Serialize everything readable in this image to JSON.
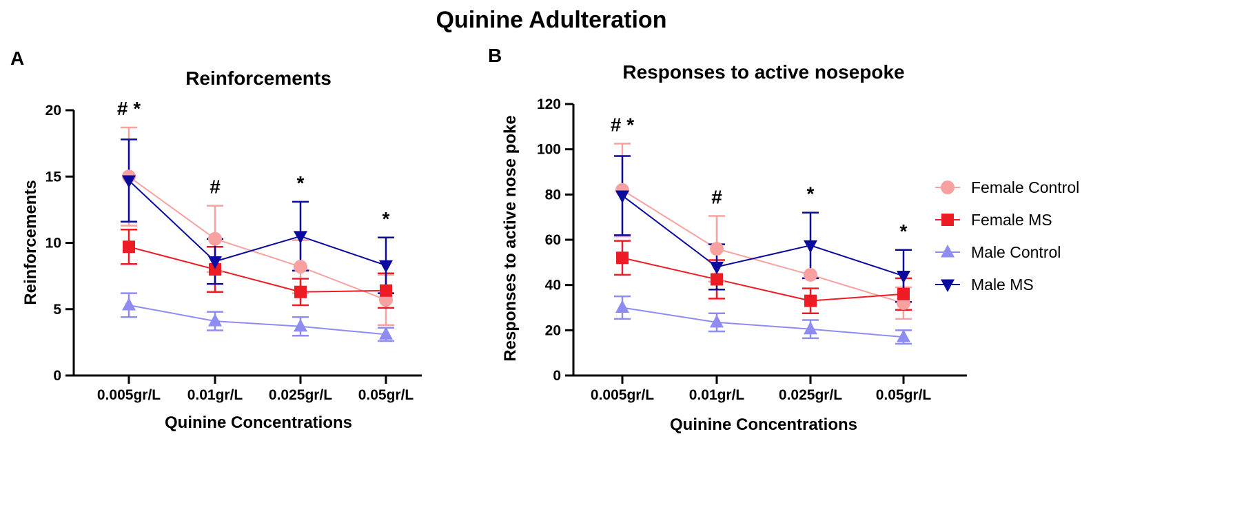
{
  "figure_title": "Quinine Adulteration",
  "series_styles": [
    {
      "name": "Female Control",
      "marker": "circle",
      "color": "#F7A1A1"
    },
    {
      "name": "Female MS",
      "marker": "square",
      "color": "#ED1C24"
    },
    {
      "name": "Male Control",
      "marker": "triangle-up",
      "color": "#8E8CF0"
    },
    {
      "name": "Male MS",
      "marker": "triangle-down",
      "color": "#0A0A9E"
    }
  ],
  "chart_data": [
    {
      "panel_label": "A",
      "type": "line",
      "title": "Reinforcements",
      "xlabel": "Quinine Concentrations",
      "ylabel": "Reinforcements",
      "categories": [
        "0.005gr/L",
        "0.01gr/L",
        "0.025gr/L",
        "0.05gr/L"
      ],
      "ylim": [
        0,
        20
      ],
      "yticks": [
        0,
        5,
        10,
        15,
        20
      ],
      "series": [
        {
          "name": "Female Control",
          "values": [
            15.0,
            10.3,
            8.2,
            5.7
          ],
          "err": [
            3.7,
            2.5,
            2.0,
            1.9
          ]
        },
        {
          "name": "Female MS",
          "values": [
            9.7,
            8.0,
            6.3,
            6.4
          ],
          "err": [
            1.3,
            1.7,
            1.0,
            1.3
          ]
        },
        {
          "name": "Male Control",
          "values": [
            5.3,
            4.1,
            3.7,
            3.1
          ],
          "err": [
            0.9,
            0.7,
            0.7,
            0.5
          ]
        },
        {
          "name": "Male MS",
          "values": [
            14.7,
            8.6,
            10.5,
            8.3
          ],
          "err": [
            3.1,
            1.7,
            2.6,
            2.1
          ]
        }
      ],
      "annotations": [
        {
          "x_index": 0,
          "text": "# *"
        },
        {
          "x_index": 1,
          "text": "#"
        },
        {
          "x_index": 2,
          "text": "*"
        },
        {
          "x_index": 3,
          "text": "*"
        }
      ],
      "legend": false
    },
    {
      "panel_label": "B",
      "type": "line",
      "title": "Responses to active nosepoke",
      "xlabel": "Quinine Concentrations",
      "ylabel": "Responses to active nose poke",
      "categories": [
        "0.005gr/L",
        "0.01gr/L",
        "0.025gr/L",
        "0.05gr/L"
      ],
      "ylim": [
        0,
        120
      ],
      "yticks": [
        0,
        20,
        40,
        60,
        80,
        100,
        120
      ],
      "series": [
        {
          "name": "Female Control",
          "values": [
            82,
            56,
            44.5,
            32
          ],
          "err": [
            20.5,
            14.5,
            0,
            7
          ]
        },
        {
          "name": "Female MS",
          "values": [
            52,
            42.5,
            33,
            36
          ],
          "err": [
            7.5,
            8.5,
            5.5,
            7
          ]
        },
        {
          "name": "Male Control",
          "values": [
            30,
            23.5,
            20.5,
            17
          ],
          "err": [
            5,
            4,
            4,
            3
          ]
        },
        {
          "name": "Male MS",
          "values": [
            79.5,
            48,
            57.5,
            44
          ],
          "err": [
            17.5,
            10,
            14.5,
            11.5
          ]
        }
      ],
      "annotations": [
        {
          "x_index": 0,
          "text": "# *"
        },
        {
          "x_index": 1,
          "text": "#"
        },
        {
          "x_index": 2,
          "text": "*"
        },
        {
          "x_index": 3,
          "text": "*"
        }
      ],
      "legend": true,
      "legend_position": "right"
    }
  ]
}
